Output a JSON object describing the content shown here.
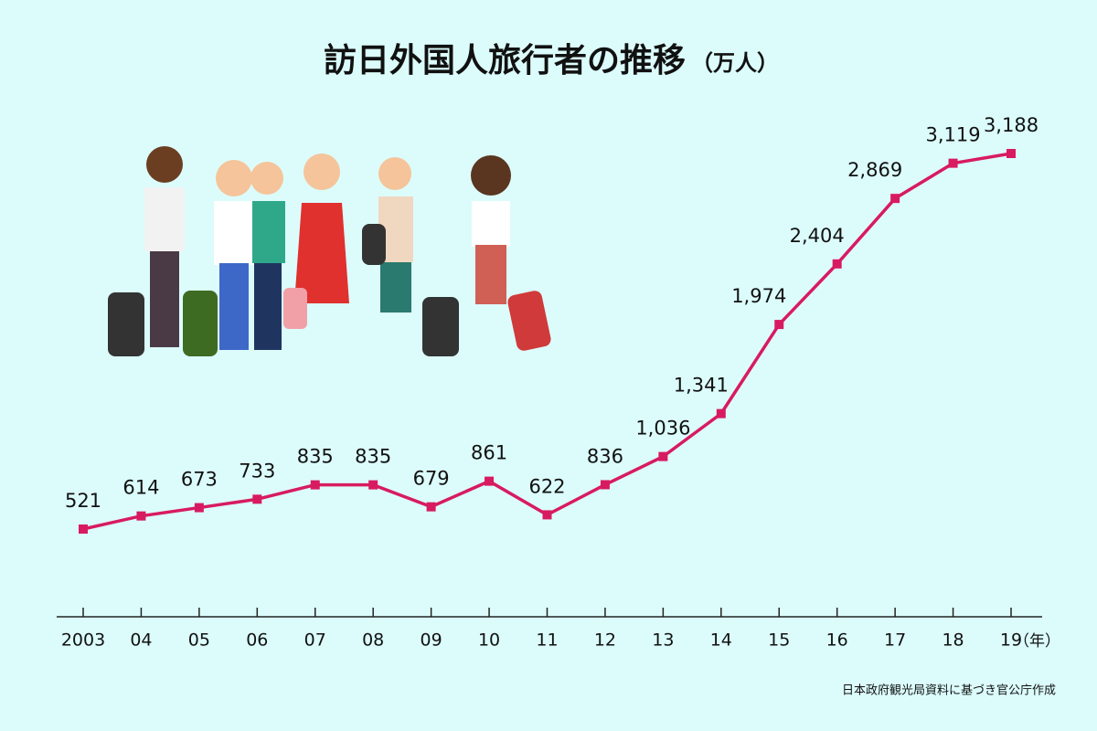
{
  "chart_data": {
    "type": "line",
    "title": "訪日外国人旅行者の推移",
    "unit_label": "（万人）",
    "x_unit_label": "（年）",
    "source": "日本政府観光局資料に基づき官公庁作成",
    "categories": [
      "2003",
      "04",
      "05",
      "06",
      "07",
      "08",
      "09",
      "10",
      "11",
      "12",
      "13",
      "14",
      "15",
      "16",
      "17",
      "18",
      "19"
    ],
    "values": [
      521,
      614,
      673,
      733,
      835,
      835,
      679,
      861,
      622,
      836,
      1036,
      1341,
      1974,
      2404,
      2869,
      3119,
      3188
    ],
    "value_labels": [
      "521",
      "614",
      "673",
      "733",
      "835",
      "835",
      "679",
      "861",
      "622",
      "836",
      "1,036",
      "1,341",
      "1,974",
      "2,404",
      "2,869",
      "3,119",
      "3,188"
    ],
    "color": "#d81b60"
  }
}
